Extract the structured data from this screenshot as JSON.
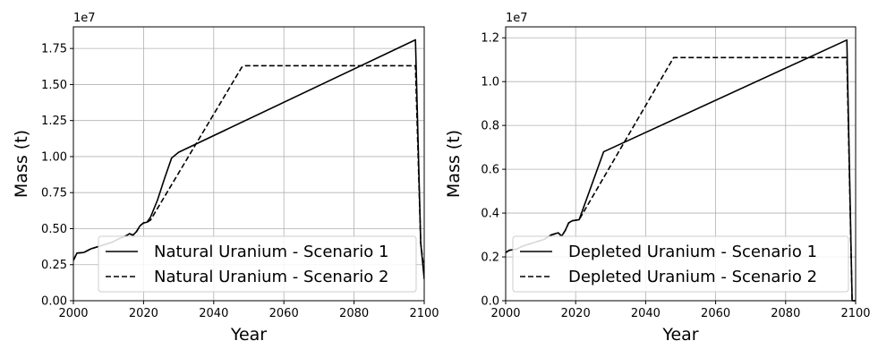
{
  "chart_data": [
    {
      "type": "line",
      "xlabel": "Year",
      "ylabel": "Mass (t)",
      "y_multiplier_label": "1e7",
      "xlim": [
        2000,
        2100
      ],
      "ylim": [
        0,
        19000000
      ],
      "xticks": [
        2000,
        2020,
        2040,
        2060,
        2080,
        2100
      ],
      "xtick_labels": [
        "2000",
        "2020",
        "2040",
        "2060",
        "2080",
        "2100"
      ],
      "yticks": [
        0,
        2500000,
        5000000,
        7500000,
        10000000,
        12500000,
        15000000,
        17500000
      ],
      "ytick_labels": [
        "0.00",
        "0.25",
        "0.50",
        "0.75",
        "1.00",
        "1.25",
        "1.50",
        "1.75"
      ],
      "grid": true,
      "legend_position": "lower-right",
      "series": [
        {
          "name": "Natural Uranium - Scenario 1",
          "style": "solid",
          "color": "#000000",
          "points": [
            [
              2000,
              2800000
            ],
            [
              2001,
              3300000
            ],
            [
              2003,
              3350000
            ],
            [
              2005,
              3600000
            ],
            [
              2007,
              3750000
            ],
            [
              2009,
              3900000
            ],
            [
              2011,
              4050000
            ],
            [
              2013,
              4300000
            ],
            [
              2015,
              4500000
            ],
            [
              2016,
              4650000
            ],
            [
              2017,
              4550000
            ],
            [
              2018,
              4800000
            ],
            [
              2019,
              5200000
            ],
            [
              2020,
              5400000
            ],
            [
              2021,
              5450000
            ],
            [
              2022,
              5800000
            ],
            [
              2024,
              7000000
            ],
            [
              2026,
              8500000
            ],
            [
              2028,
              9900000
            ],
            [
              2030,
              10300000
            ],
            [
              2097.5,
              18100000
            ],
            [
              2099,
              4000000
            ],
            [
              2100,
              1500000
            ]
          ]
        },
        {
          "name": "Natural Uranium - Scenario 2",
          "style": "dashed",
          "color": "#000000",
          "points": [
            [
              2000,
              2800000
            ],
            [
              2001,
              3300000
            ],
            [
              2003,
              3350000
            ],
            [
              2005,
              3600000
            ],
            [
              2007,
              3750000
            ],
            [
              2009,
              3900000
            ],
            [
              2011,
              4050000
            ],
            [
              2013,
              4300000
            ],
            [
              2015,
              4500000
            ],
            [
              2016,
              4650000
            ],
            [
              2017,
              4550000
            ],
            [
              2018,
              4800000
            ],
            [
              2019,
              5200000
            ],
            [
              2020,
              5400000
            ],
            [
              2021,
              5450000
            ],
            [
              2022,
              5600000
            ],
            [
              2048,
              16200000
            ],
            [
              2049,
              16300000
            ],
            [
              2097.5,
              16300000
            ],
            [
              2099,
              4000000
            ],
            [
              2100,
              2000000
            ]
          ]
        }
      ]
    },
    {
      "type": "line",
      "xlabel": "Year",
      "ylabel": "Mass (t)",
      "y_multiplier_label": "1e7",
      "xlim": [
        2000,
        2100
      ],
      "ylim": [
        0,
        12500000
      ],
      "xticks": [
        2000,
        2020,
        2040,
        2060,
        2080,
        2100
      ],
      "xtick_labels": [
        "2000",
        "2020",
        "2040",
        "2060",
        "2080",
        "2100"
      ],
      "yticks": [
        0,
        2000000,
        4000000,
        6000000,
        8000000,
        10000000,
        12000000
      ],
      "ytick_labels": [
        "0.0",
        "0.2",
        "0.4",
        "0.6",
        "0.8",
        "1.0",
        "1.2"
      ],
      "grid": true,
      "legend_position": "lower-right",
      "series": [
        {
          "name": "Depleted Uranium - Scenario 1",
          "style": "solid",
          "color": "#000000",
          "points": [
            [
              2000,
              2200000
            ],
            [
              2001,
              2300000
            ],
            [
              2003,
              2350000
            ],
            [
              2005,
              2500000
            ],
            [
              2007,
              2600000
            ],
            [
              2009,
              2700000
            ],
            [
              2011,
              2800000
            ],
            [
              2013,
              3000000
            ],
            [
              2015,
              3100000
            ],
            [
              2016,
              2950000
            ],
            [
              2017,
              3200000
            ],
            [
              2018,
              3550000
            ],
            [
              2019,
              3650000
            ],
            [
              2021,
              3700000
            ],
            [
              2028,
              6800000
            ],
            [
              2097.5,
              11900000
            ],
            [
              2099,
              0
            ],
            [
              2100,
              0
            ]
          ]
        },
        {
          "name": "Depleted Uranium - Scenario 2",
          "style": "dashed",
          "color": "#000000",
          "points": [
            [
              2000,
              2200000
            ],
            [
              2001,
              2300000
            ],
            [
              2003,
              2350000
            ],
            [
              2005,
              2500000
            ],
            [
              2007,
              2600000
            ],
            [
              2009,
              2700000
            ],
            [
              2011,
              2800000
            ],
            [
              2013,
              3000000
            ],
            [
              2015,
              3100000
            ],
            [
              2016,
              2950000
            ],
            [
              2017,
              3200000
            ],
            [
              2018,
              3550000
            ],
            [
              2019,
              3650000
            ],
            [
              2021,
              3700000
            ],
            [
              2048,
              11100000
            ],
            [
              2049,
              11100000
            ],
            [
              2097.5,
              11100000
            ],
            [
              2099,
              0
            ],
            [
              2100,
              0
            ]
          ]
        }
      ]
    }
  ]
}
